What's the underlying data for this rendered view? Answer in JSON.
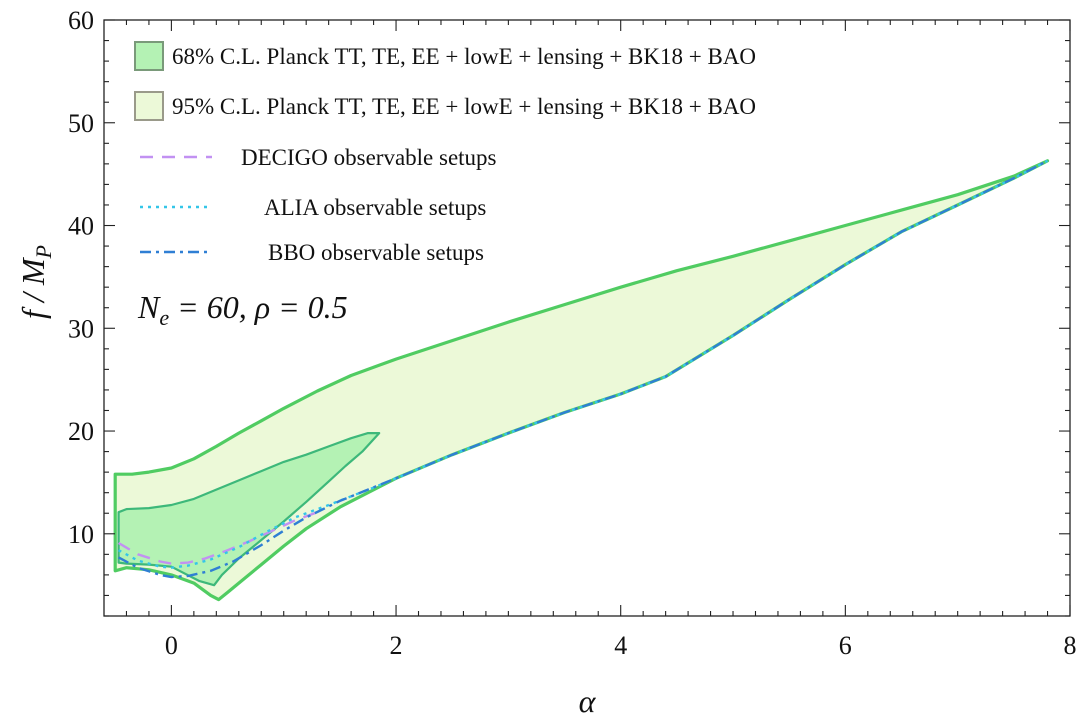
{
  "chart_data": {
    "type": "line",
    "title": "",
    "xlabel": "α",
    "ylabel": "f / M_P",
    "xlim": [
      -0.6,
      8
    ],
    "ylim": [
      2,
      60
    ],
    "xticks": [
      0,
      2,
      4,
      6,
      8
    ],
    "yticks": [
      10,
      20,
      30,
      40,
      50,
      60
    ],
    "xtick_labels": [
      "0",
      "2",
      "4",
      "6",
      "8"
    ],
    "ytick_labels": [
      "10",
      "20",
      "30",
      "40",
      "50",
      "60"
    ],
    "annotation": "N_e = 60, ρ = 0.5",
    "colors": {
      "c68_fill": "#b4f2b4",
      "c95_fill": "#ecf9d8",
      "c68_edge": "#3db87a",
      "c95_edge": "#50cc62",
      "decigo": "#c291f2",
      "alia": "#34c6e8",
      "bbo": "#2f7fd4"
    },
    "legend": {
      "position": "top-left",
      "entries": [
        {
          "label": "68% C.L. Planck TT, TE, EE + lowE + lensing + BK18 + BAO",
          "kind": "patch",
          "fill": "#b4f2b4",
          "edge": "#7a9a7a"
        },
        {
          "label": "95% C.L. Planck TT, TE, EE + lowE + lensing + BK18 + BAO",
          "kind": "patch",
          "fill": "#ecf9d8",
          "edge": "#9a9a8a"
        },
        {
          "label": "DECIGO observable setups",
          "kind": "line",
          "color": "#c291f2",
          "dash": "dash"
        },
        {
          "label": "ALIA observable setups",
          "kind": "line",
          "color": "#34c6e8",
          "dash": "dot"
        },
        {
          "label": "BBO observable setups",
          "kind": "line",
          "color": "#2f7fd4",
          "dash": "dashdot"
        }
      ]
    },
    "series": [
      {
        "name": "95% C.L. contour",
        "kind": "region",
        "upper": [
          [
            -0.5,
            15.8
          ],
          [
            -0.35,
            15.8
          ],
          [
            -0.2,
            16.0
          ],
          [
            0,
            16.4
          ],
          [
            0.2,
            17.3
          ],
          [
            0.4,
            18.5
          ],
          [
            0.6,
            19.8
          ],
          [
            0.8,
            21.0
          ],
          [
            1,
            22.2
          ],
          [
            1.3,
            23.9
          ],
          [
            1.6,
            25.4
          ],
          [
            2,
            27.0
          ],
          [
            2.5,
            28.8
          ],
          [
            3,
            30.6
          ],
          [
            3.5,
            32.3
          ],
          [
            4,
            34.0
          ],
          [
            4.5,
            35.6
          ],
          [
            5,
            37.0
          ],
          [
            5.5,
            38.5
          ],
          [
            6,
            40.0
          ],
          [
            6.5,
            41.5
          ],
          [
            7,
            43.0
          ],
          [
            7.5,
            44.8
          ],
          [
            7.8,
            46.3
          ]
        ],
        "lower": [
          [
            -0.5,
            6.4
          ],
          [
            -0.4,
            6.7
          ],
          [
            -0.2,
            6.5
          ],
          [
            0,
            6.0
          ],
          [
            0.2,
            5.2
          ],
          [
            0.35,
            4.0
          ],
          [
            0.42,
            3.6
          ],
          [
            0.5,
            4.3
          ],
          [
            0.6,
            5.2
          ],
          [
            0.8,
            7.0
          ],
          [
            1,
            8.8
          ],
          [
            1.2,
            10.5
          ],
          [
            1.5,
            12.6
          ],
          [
            2,
            15.4
          ],
          [
            2.5,
            17.7
          ],
          [
            3,
            19.8
          ],
          [
            3.5,
            21.8
          ],
          [
            4,
            23.6
          ],
          [
            4.4,
            25.3
          ],
          [
            5,
            29.3
          ],
          [
            5.5,
            32.8
          ],
          [
            6,
            36.2
          ],
          [
            6.5,
            39.4
          ],
          [
            7,
            42.0
          ],
          [
            7.5,
            44.6
          ],
          [
            7.8,
            46.3
          ]
        ]
      },
      {
        "name": "68% C.L. contour",
        "kind": "region",
        "upper": [
          [
            -0.47,
            12.1
          ],
          [
            -0.4,
            12.4
          ],
          [
            -0.2,
            12.5
          ],
          [
            0,
            12.8
          ],
          [
            0.2,
            13.4
          ],
          [
            0.4,
            14.3
          ],
          [
            0.6,
            15.2
          ],
          [
            0.8,
            16.1
          ],
          [
            1,
            17.0
          ],
          [
            1.2,
            17.7
          ],
          [
            1.4,
            18.5
          ],
          [
            1.6,
            19.3
          ],
          [
            1.75,
            19.8
          ],
          [
            1.85,
            19.8
          ]
        ],
        "lower": [
          [
            1.85,
            19.8
          ],
          [
            1.7,
            18.0
          ],
          [
            1.55,
            16.6
          ],
          [
            1.4,
            15.1
          ],
          [
            1.2,
            13.1
          ],
          [
            1,
            11.2
          ],
          [
            0.8,
            9.4
          ],
          [
            0.6,
            7.6
          ],
          [
            0.45,
            6.0
          ],
          [
            0.38,
            5.0
          ],
          [
            0.25,
            5.4
          ],
          [
            0,
            6.8
          ],
          [
            -0.2,
            7.0
          ],
          [
            -0.4,
            7.1
          ],
          [
            -0.47,
            7.2
          ]
        ]
      },
      {
        "name": "DECIGO observable setups",
        "kind": "line",
        "points": [
          [
            -0.47,
            9.1
          ],
          [
            -0.3,
            8.0
          ],
          [
            -0.1,
            7.3
          ],
          [
            0,
            7.1
          ],
          [
            0.15,
            7.2
          ],
          [
            0.3,
            7.6
          ],
          [
            0.5,
            8.4
          ],
          [
            0.7,
            9.3
          ],
          [
            0.9,
            10.3
          ],
          [
            1.1,
            11.3
          ],
          [
            1.35,
            12.3
          ]
        ]
      },
      {
        "name": "ALIA observable setups",
        "kind": "line",
        "points": [
          [
            -0.47,
            8.4
          ],
          [
            -0.3,
            7.4
          ],
          [
            -0.1,
            6.8
          ],
          [
            0,
            6.7
          ],
          [
            0.15,
            6.9
          ],
          [
            0.35,
            7.5
          ],
          [
            0.6,
            8.7
          ],
          [
            0.85,
            10.2
          ],
          [
            1.1,
            11.6
          ],
          [
            1.4,
            12.8
          ],
          [
            1.8,
            14.5
          ],
          [
            2,
            15.4
          ],
          [
            2.5,
            17.7
          ],
          [
            3,
            19.8
          ],
          [
            3.5,
            21.8
          ],
          [
            4,
            23.6
          ],
          [
            4.4,
            25.3
          ],
          [
            5,
            29.3
          ],
          [
            5.5,
            32.8
          ],
          [
            6,
            36.2
          ],
          [
            6.5,
            39.4
          ],
          [
            7,
            42.0
          ],
          [
            7.5,
            44.6
          ],
          [
            7.8,
            46.3
          ]
        ]
      },
      {
        "name": "BBO observable setups",
        "kind": "line",
        "points": [
          [
            -0.47,
            7.7
          ],
          [
            -0.3,
            6.7
          ],
          [
            -0.1,
            6.0
          ],
          [
            0,
            5.8
          ],
          [
            0.15,
            5.9
          ],
          [
            0.35,
            6.4
          ],
          [
            0.55,
            7.3
          ],
          [
            0.8,
            8.9
          ],
          [
            1,
            10.3
          ],
          [
            1.2,
            11.6
          ],
          [
            1.5,
            13.2
          ],
          [
            2,
            15.4
          ],
          [
            2.5,
            17.7
          ],
          [
            3,
            19.8
          ],
          [
            3.5,
            21.8
          ],
          [
            4,
            23.6
          ],
          [
            4.4,
            25.3
          ],
          [
            5,
            29.3
          ],
          [
            5.5,
            32.8
          ],
          [
            6,
            36.2
          ],
          [
            6.5,
            39.4
          ],
          [
            7,
            42.0
          ],
          [
            7.5,
            44.6
          ],
          [
            7.8,
            46.3
          ]
        ]
      }
    ]
  }
}
